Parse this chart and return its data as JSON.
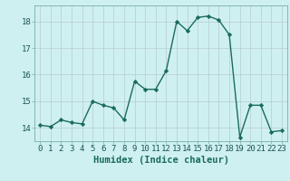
{
  "xlabel": "Humidex (Indice chaleur)",
  "x": [
    0,
    1,
    2,
    3,
    4,
    5,
    6,
    7,
    8,
    9,
    10,
    11,
    12,
    13,
    14,
    15,
    16,
    17,
    18,
    19,
    20,
    21,
    22,
    23
  ],
  "y": [
    14.1,
    14.05,
    14.3,
    14.2,
    14.15,
    15.0,
    14.85,
    14.75,
    14.3,
    15.75,
    15.45,
    15.45,
    16.15,
    18.0,
    17.65,
    18.15,
    18.2,
    18.05,
    17.5,
    13.65,
    14.85,
    14.85,
    13.85,
    13.9
  ],
  "line_color": "#1a6b5e",
  "marker": "D",
  "marker_size": 2.2,
  "bg_color": "#cff0f0",
  "grid_color": "#b8cccc",
  "ylim": [
    13.5,
    18.6
  ],
  "yticks": [
    14,
    15,
    16,
    17,
    18
  ],
  "xticks": [
    0,
    1,
    2,
    3,
    4,
    5,
    6,
    7,
    8,
    9,
    10,
    11,
    12,
    13,
    14,
    15,
    16,
    17,
    18,
    19,
    20,
    21,
    22,
    23
  ],
  "tick_label_fontsize": 6.5,
  "xlabel_fontsize": 7.5,
  "line_width": 1.0
}
